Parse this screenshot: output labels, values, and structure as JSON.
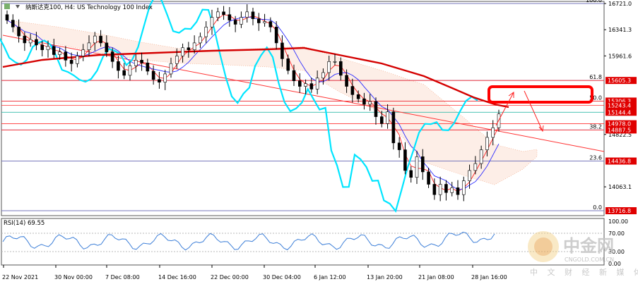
{
  "header": {
    "title": "纳斯达克100, H4:  US Technology 100 Index"
  },
  "rsi": {
    "label": "RSI(14) 69.55",
    "axis_labels": [
      "100.00",
      "70.00",
      "30.00",
      "0.00"
    ]
  },
  "watermark": {
    "cn": "中金网",
    "domain": "CNGOLD.COM.CN",
    "slogan": "中 文 财 经 新 媒 体"
  },
  "colors": {
    "bg": "#ffffff",
    "candle": "#000000",
    "cyan_line": "#00e5ff",
    "blue_line": "#2a2aff",
    "red_thin": "#ff2020",
    "red_ma": "#d40000",
    "trendline": "#ff3333",
    "fib_line": "#7777bb",
    "hline_red": "#ff3333",
    "level_label_bg": "#e00000",
    "cloud": "#f2a07a",
    "rsi_line": "#3d7fd8",
    "target_box": "#ff0000"
  },
  "chart_data": {
    "type": "candlestick",
    "instrument": "US Technology 100 Index",
    "timeframe": "H4",
    "ylim": [
      13716.8,
      16721.0
    ],
    "y_ticks": [
      "16721.0",
      "16341.3",
      "15961.6",
      "14822.5",
      "14063.1"
    ],
    "x_ticks": [
      "22 Nov 2021",
      "30 Nov 00:00",
      "7 Dec 08:00",
      "14 Dec 16:00",
      "22 Dec 00:00",
      "30 Dec 04:00",
      "6 Jan 12:00",
      "13 Jan 20:00",
      "21 Jan 08:00",
      "28 Jan 16:00"
    ],
    "fibonacci": [
      {
        "label": "100.0",
        "price": 16721.0
      },
      {
        "label": "61.8",
        "price": 15605.3
      },
      {
        "label": "50.0",
        "price": 15306.3
      },
      {
        "label": "38.2",
        "price": 14887.5
      },
      {
        "label": "23.6",
        "price": 14436.8
      },
      {
        "label": "0.0",
        "price": 13716.8
      }
    ],
    "marked_levels": [
      {
        "label": "15605.3",
        "price": 15605.3
      },
      {
        "label": "15306.3",
        "price": 15306.3
      },
      {
        "label": "15243.4",
        "price": 15243.4
      },
      {
        "label": "15144.4",
        "price": 15144.4
      },
      {
        "label": "14978.0",
        "price": 14978.0
      },
      {
        "label": "14887.5",
        "price": 14887.5
      },
      {
        "label": "14436.8",
        "price": 14436.8
      },
      {
        "label": "13716.8",
        "price": 13716.8
      }
    ],
    "candles_close_approx": [
      16480,
      16380,
      16250,
      16150,
      16200,
      16120,
      16050,
      16100,
      15980,
      16020,
      15900,
      15850,
      15960,
      16050,
      16150,
      16250,
      16150,
      16020,
      15880,
      15750,
      15680,
      15820,
      15900,
      15860,
      15740,
      15620,
      15580,
      15700,
      15850,
      15960,
      16080,
      16050,
      16150,
      16240,
      16380,
      16520,
      16600,
      16560,
      16480,
      16420,
      16520,
      16600,
      16500,
      16440,
      16460,
      16380,
      16150,
      15920,
      15750,
      15600,
      15520,
      15560,
      15480,
      15640,
      15720,
      15880,
      15880,
      15680,
      15520,
      15400,
      15340,
      15260,
      15300,
      15080,
      14980,
      15150,
      14700,
      14600,
      14300,
      14200,
      14500,
      14280,
      14100,
      13950,
      14100,
      13980,
      14050,
      13950,
      14150,
      14300,
      14400,
      14600,
      14780,
      14920,
      15120
    ],
    "rsi_period": 14,
    "rsi_last": 69.55,
    "rsi_levels": [
      70,
      30
    ]
  }
}
